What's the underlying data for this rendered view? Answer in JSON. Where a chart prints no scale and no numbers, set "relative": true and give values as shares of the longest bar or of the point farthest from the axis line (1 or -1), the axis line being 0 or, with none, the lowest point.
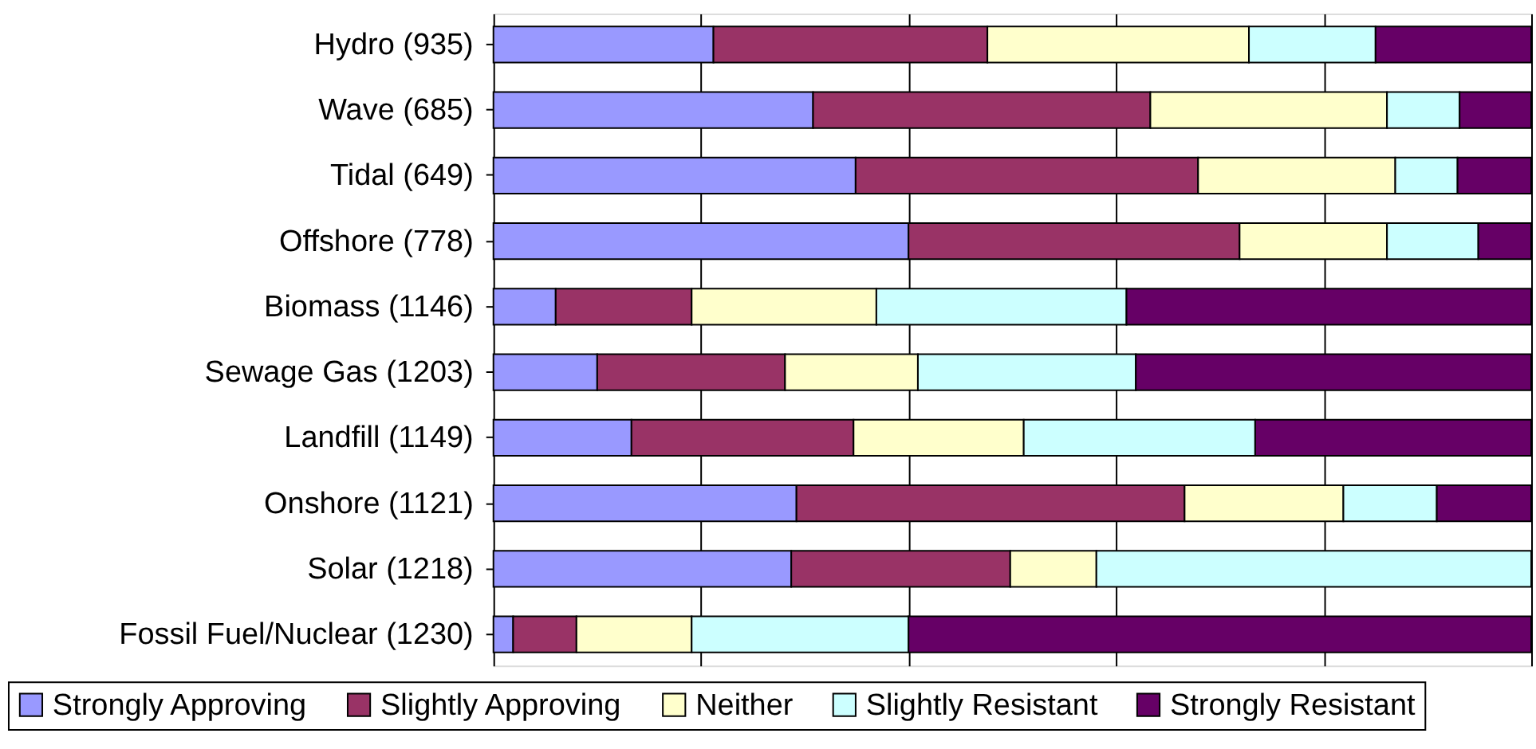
{
  "chart_data": {
    "type": "bar",
    "orientation": "horizontal",
    "stacked": true,
    "relative": true,
    "grid": "x",
    "legend": "bottom",
    "categories": [
      "Hydro (935)",
      "Wave (685)",
      "Tidal (649)",
      "Offshore (778)",
      "Biomass (1146)",
      "Sewage Gas (1203)",
      "Landfill (1149)",
      "Onshore (1121)",
      "Solar (1218)",
      "Fossil Fuel/Nuclear (1230)"
    ],
    "series": [
      {
        "name": "Strongly Approving",
        "color": "#9999ff",
        "values": [
          0.212,
          0.308,
          0.349,
          0.4,
          0.06,
          0.1,
          0.133,
          0.292,
          0.287,
          0.019
        ]
      },
      {
        "name": "Slightly Approving",
        "color": "#993366",
        "values": [
          0.264,
          0.325,
          0.33,
          0.319,
          0.131,
          0.181,
          0.214,
          0.374,
          0.211,
          0.061
        ]
      },
      {
        "name": "Neither",
        "color": "#ffffcc",
        "values": [
          0.252,
          0.228,
          0.19,
          0.142,
          0.178,
          0.128,
          0.164,
          0.153,
          0.083,
          0.111
        ]
      },
      {
        "name": "Slightly Resistant",
        "color": "#ccffff",
        "values": [
          0.122,
          0.07,
          0.06,
          0.088,
          0.241,
          0.21,
          0.223,
          0.09,
          0.419,
          0.209
        ]
      },
      {
        "name": "Strongly Resistant",
        "color": "#660066",
        "values": [
          0.15,
          0.069,
          0.071,
          0.051,
          0.39,
          0.381,
          0.266,
          0.091,
          null,
          0.6
        ]
      }
    ]
  }
}
